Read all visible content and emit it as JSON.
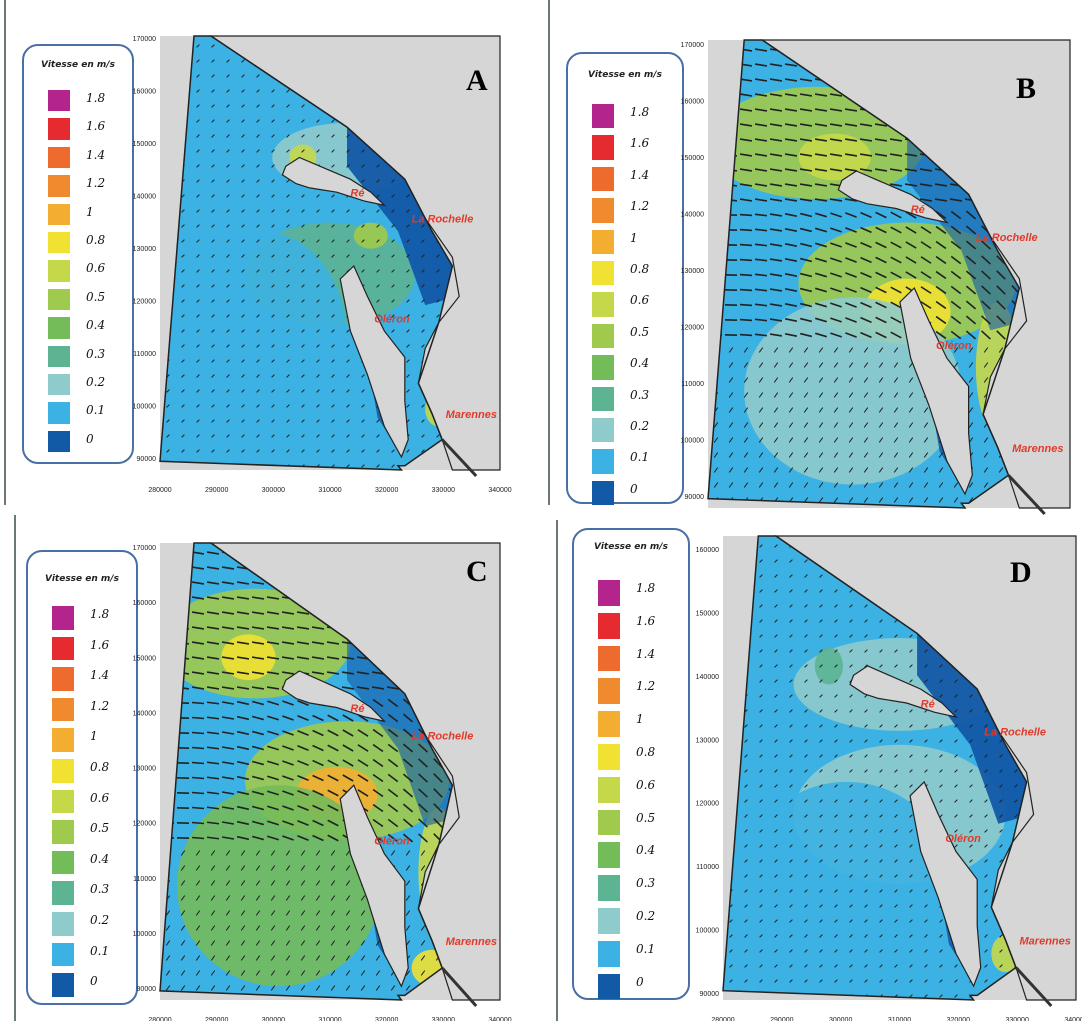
{
  "legend": {
    "title": "Vitesse en m/s",
    "entries": [
      {
        "label": "1.8",
        "color": "#b3258c"
      },
      {
        "label": "1.6",
        "color": "#e52b30"
      },
      {
        "label": "1.4",
        "color": "#ec6b2d"
      },
      {
        "label": "1.2",
        "color": "#f08a2e"
      },
      {
        "label": "1",
        "color": "#f3ae32"
      },
      {
        "label": "0.8",
        "color": "#f0e132"
      },
      {
        "label": "0.6",
        "color": "#c5d84a"
      },
      {
        "label": "0.5",
        "color": "#9fca4d"
      },
      {
        "label": "0.4",
        "color": "#74bb5a"
      },
      {
        "label": "0.3",
        "color": "#5cb493"
      },
      {
        "label": "0.2",
        "color": "#8fcbcb"
      },
      {
        "label": "0.1",
        "color": "#3cb1e3"
      },
      {
        "label": "0",
        "color": "#1259a6"
      }
    ]
  },
  "places": {
    "re": "Ré",
    "rochelle": "La Rochelle",
    "oleron": "Oléron",
    "marennes": "Marennes"
  },
  "panels": [
    {
      "letter": "A",
      "yticks": [
        "170000",
        "160000",
        "150000",
        "140000",
        "130000",
        "120000",
        "110000",
        "100000",
        "90000"
      ],
      "xticks": [
        "280000",
        "290000",
        "300000",
        "310000",
        "320000",
        "330000",
        "340000"
      ]
    },
    {
      "letter": "B",
      "yticks": [
        "170000",
        "160000",
        "150000",
        "140000",
        "130000",
        "120000",
        "110000",
        "100000",
        "90000"
      ],
      "xticks": []
    },
    {
      "letter": "C",
      "yticks": [
        "170000",
        "160000",
        "150000",
        "140000",
        "130000",
        "120000",
        "110000",
        "100000",
        "90000"
      ],
      "xticks": [
        "280000",
        "290000",
        "300000",
        "310000",
        "320000",
        "330000",
        "340000"
      ]
    },
    {
      "letter": "D",
      "yticks": [
        "160000",
        "150000",
        "140000",
        "130000",
        "120000",
        "110000",
        "100000",
        "90000"
      ],
      "xticks": [
        "280000",
        "290000",
        "300000",
        "310000",
        "320000",
        "330000",
        "340000"
      ]
    }
  ]
}
